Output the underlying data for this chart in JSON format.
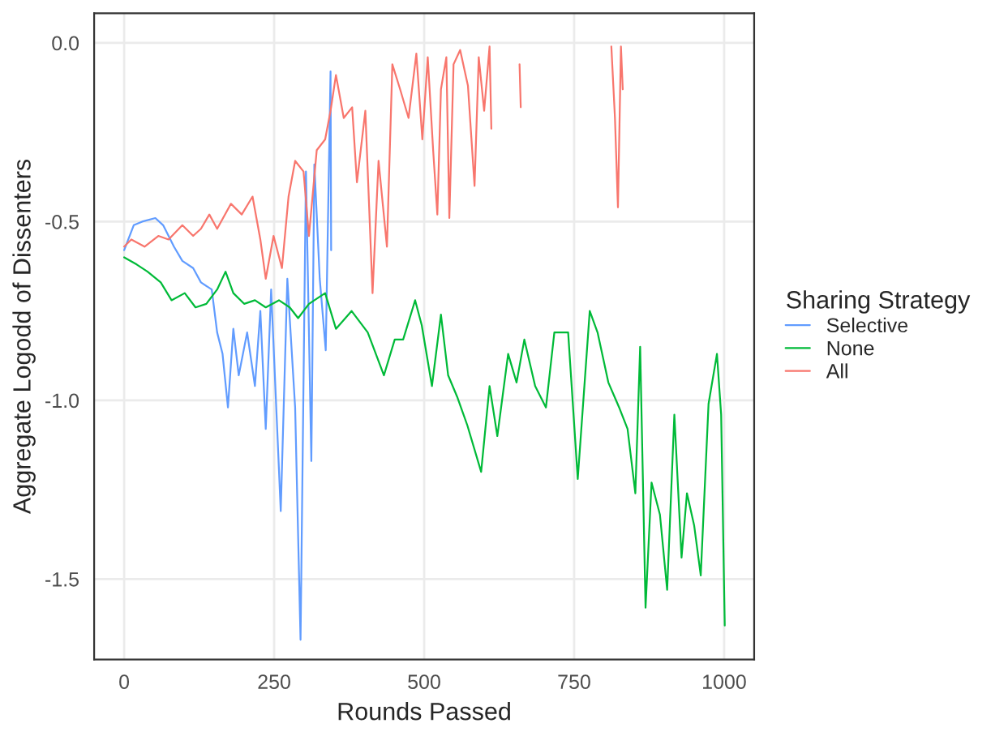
{
  "chart_data": {
    "type": "line",
    "xlabel": "Rounds Passed",
    "ylabel": "Aggregate Logodd of Dissenters",
    "legend_title": "Sharing Strategy",
    "legend": "right",
    "grid": true,
    "xlim": [
      -50,
      1050
    ],
    "ylim": [
      -1.725,
      0.083
    ],
    "xticks": [
      0,
      250,
      500,
      750,
      1000
    ],
    "yticks": [
      {
        "value": 0,
        "label": "0.0"
      },
      {
        "value": -0.5,
        "label": "-0.5"
      },
      {
        "value": -1.0,
        "label": "-1.0"
      },
      {
        "value": -1.5,
        "label": "-1.5"
      }
    ],
    "series": [
      {
        "name": "Selective",
        "color": "#619cff",
        "x": [
          0,
          16,
          30,
          52,
          65,
          83,
          97,
          115,
          128,
          146,
          155,
          164,
          173,
          182,
          191,
          205,
          218,
          227,
          236,
          245,
          261,
          272,
          285,
          294,
          303,
          312,
          317,
          326,
          336,
          344,
          345
        ],
        "values": [
          -0.58,
          -0.51,
          -0.5,
          -0.49,
          -0.51,
          -0.57,
          -0.61,
          -0.63,
          -0.67,
          -0.69,
          -0.81,
          -0.87,
          -1.02,
          -0.8,
          -0.93,
          -0.81,
          -0.96,
          -0.75,
          -1.08,
          -0.69,
          -1.31,
          -0.66,
          -1.02,
          -1.67,
          -0.36,
          -1.17,
          -0.34,
          -0.66,
          -0.86,
          -0.08,
          -0.58
        ]
      },
      {
        "name": "None",
        "color": "#00ba38",
        "x": [
          0,
          21,
          39,
          61,
          79,
          101,
          119,
          137,
          155,
          169,
          182,
          200,
          218,
          236,
          258,
          276,
          290,
          308,
          335,
          353,
          379,
          406,
          433,
          451,
          465,
          485,
          496,
          513,
          528,
          540,
          555,
          572,
          595,
          609,
          622,
          640,
          654,
          667,
          685,
          703,
          717,
          740,
          756,
          776,
          789,
          807,
          825,
          839,
          852,
          860,
          869,
          879,
          893,
          905,
          917,
          929,
          938,
          950,
          961,
          974,
          988,
          995,
          1001
        ],
        "values": [
          -0.6,
          -0.62,
          -0.64,
          -0.67,
          -0.72,
          -0.7,
          -0.74,
          -0.73,
          -0.69,
          -0.64,
          -0.7,
          -0.73,
          -0.72,
          -0.74,
          -0.72,
          -0.74,
          -0.77,
          -0.73,
          -0.7,
          -0.8,
          -0.75,
          -0.81,
          -0.93,
          -0.83,
          -0.83,
          -0.72,
          -0.79,
          -0.96,
          -0.76,
          -0.93,
          -0.99,
          -1.07,
          -1.2,
          -0.96,
          -1.1,
          -0.87,
          -0.95,
          -0.83,
          -0.96,
          -1.02,
          -0.81,
          -0.81,
          -1.22,
          -0.75,
          -0.81,
          -0.95,
          -1.02,
          -1.08,
          -1.26,
          -0.85,
          -1.58,
          -1.23,
          -1.32,
          -1.53,
          -1.04,
          -1.44,
          -1.26,
          -1.35,
          -1.49,
          -1.01,
          -0.87,
          -1.04,
          -1.63
        ]
      },
      {
        "name": "All",
        "color": "#f8766d",
        "x": [
          0,
          12,
          34,
          57,
          74,
          97,
          115,
          128,
          142,
          155,
          178,
          196,
          214,
          227,
          236,
          249,
          263,
          274,
          285,
          299,
          308,
          321,
          335,
          344,
          353,
          366,
          380,
          388,
          402,
          414,
          424,
          438,
          447,
          460,
          474,
          487,
          497,
          506,
          515,
          522,
          528,
          537,
          542,
          549,
          560,
          573,
          584,
          591,
          600,
          609,
          612,
          635,
          659,
          661,
          735,
          812,
          818,
          823,
          828,
          831
        ],
        "values": [
          -0.57,
          -0.55,
          -0.57,
          -0.54,
          -0.55,
          -0.51,
          -0.54,
          -0.52,
          -0.48,
          -0.52,
          -0.45,
          -0.48,
          -0.43,
          -0.55,
          -0.66,
          -0.54,
          -0.63,
          -0.43,
          -0.33,
          -0.36,
          -0.54,
          -0.3,
          -0.27,
          -0.19,
          -0.09,
          -0.21,
          -0.18,
          -0.39,
          -0.19,
          -0.7,
          -0.33,
          -0.57,
          -0.06,
          -0.13,
          -0.21,
          -0.03,
          -0.27,
          -0.04,
          -0.3,
          -0.48,
          -0.13,
          -0.04,
          -0.49,
          -0.06,
          -0.02,
          -0.12,
          -0.4,
          -0.04,
          -0.19,
          -0.01,
          -0.24,
          null,
          -0.06,
          -0.18,
          null,
          -0.01,
          -0.21,
          -0.46,
          -0.01,
          -0.13
        ]
      }
    ]
  }
}
